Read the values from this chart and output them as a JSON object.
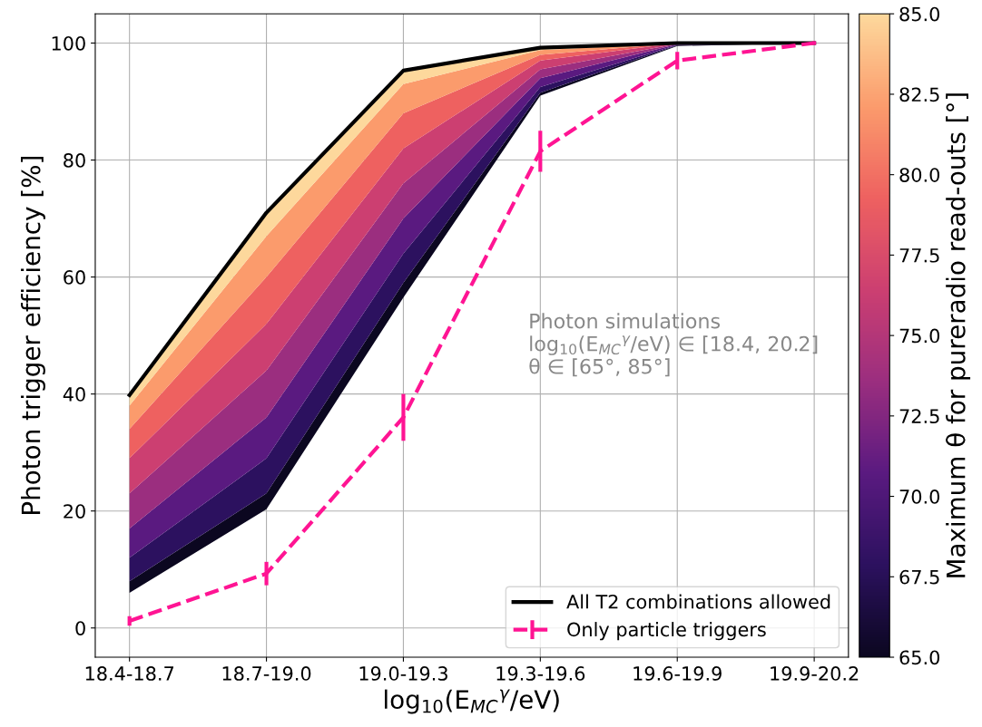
{
  "chart_data": {
    "type": "line",
    "xlabel": "log$_{10}$(E$_{MC}$$^{γ}$/eV)",
    "ylabel": "Photon trigger efficiency [%]",
    "clabel": "Maximum θ for pureradio read-outs [°]",
    "categories": [
      "18.4-18.7",
      "18.7-19.0",
      "19.0-19.3",
      "19.3-19.6",
      "19.6-19.9",
      "19.9-20.2"
    ],
    "ylim": [
      -5,
      105
    ],
    "yticks": [
      0,
      20,
      40,
      60,
      80,
      100
    ],
    "clim": [
      65,
      85
    ],
    "cticks": [
      {
        "value": 65,
        "label": "65.0"
      },
      {
        "value": 67.5,
        "label": "67.5"
      },
      {
        "value": 70,
        "label": "70.0"
      },
      {
        "value": 72.5,
        "label": "72.5"
      },
      {
        "value": 75,
        "label": "75.0"
      },
      {
        "value": 77.5,
        "label": "77.5"
      },
      {
        "value": 80,
        "label": "80.0"
      },
      {
        "value": 82.5,
        "label": "82.5"
      },
      {
        "value": 85,
        "label": "85.0"
      }
    ],
    "grid": true,
    "legend": "bottom right",
    "annotations": [
      "Photon simulations\nlog$_{10}$(E$_{MC}$$^{γ}$/eV) ∈ [18.4, 20.2]\nθ ∈ [65°, 85°]"
    ],
    "series": [
      {
        "type": "area",
        "color": "#0b0720",
        "values": [
          6,
          20.3,
          56.5,
          91,
          99.5,
          100
        ]
      },
      {
        "type": "area",
        "color": "#2c115f",
        "values": [
          8,
          23,
          59,
          91.5,
          99.6,
          100
        ]
      },
      {
        "type": "area",
        "color": "#5a1a80",
        "values": [
          12,
          29,
          64,
          92.5,
          99.7,
          100
        ]
      },
      {
        "type": "area",
        "color": "#9b2e7f",
        "values": [
          17,
          36,
          70,
          94,
          99.8,
          100
        ]
      },
      {
        "type": "area",
        "color": "#cc3f71",
        "values": [
          23,
          44,
          76,
          95.5,
          99.9,
          100
        ]
      },
      {
        "type": "area",
        "color": "#ee6160",
        "values": [
          29,
          52,
          82,
          97,
          100,
          100
        ]
      },
      {
        "type": "area",
        "color": "#fb9b6c",
        "values": [
          34,
          60,
          88,
          98,
          100,
          100
        ]
      },
      {
        "type": "area",
        "color": "#fdd89c",
        "values": [
          38,
          67,
          93,
          98.8,
          100,
          100
        ]
      },
      {
        "name": "All T2 combinations allowed",
        "color": "#000000",
        "line_style": "solid",
        "values": [
          39.8,
          71,
          95.3,
          99.2,
          100,
          100
        ]
      },
      {
        "name": "Only particle triggers",
        "color": "#ff1493",
        "line_style": "dashed",
        "values": [
          1.2,
          9.3,
          36,
          81.5,
          97,
          100
        ],
        "errors": [
          0.8,
          2,
          4,
          3.5,
          1.5,
          0.3
        ]
      }
    ]
  }
}
